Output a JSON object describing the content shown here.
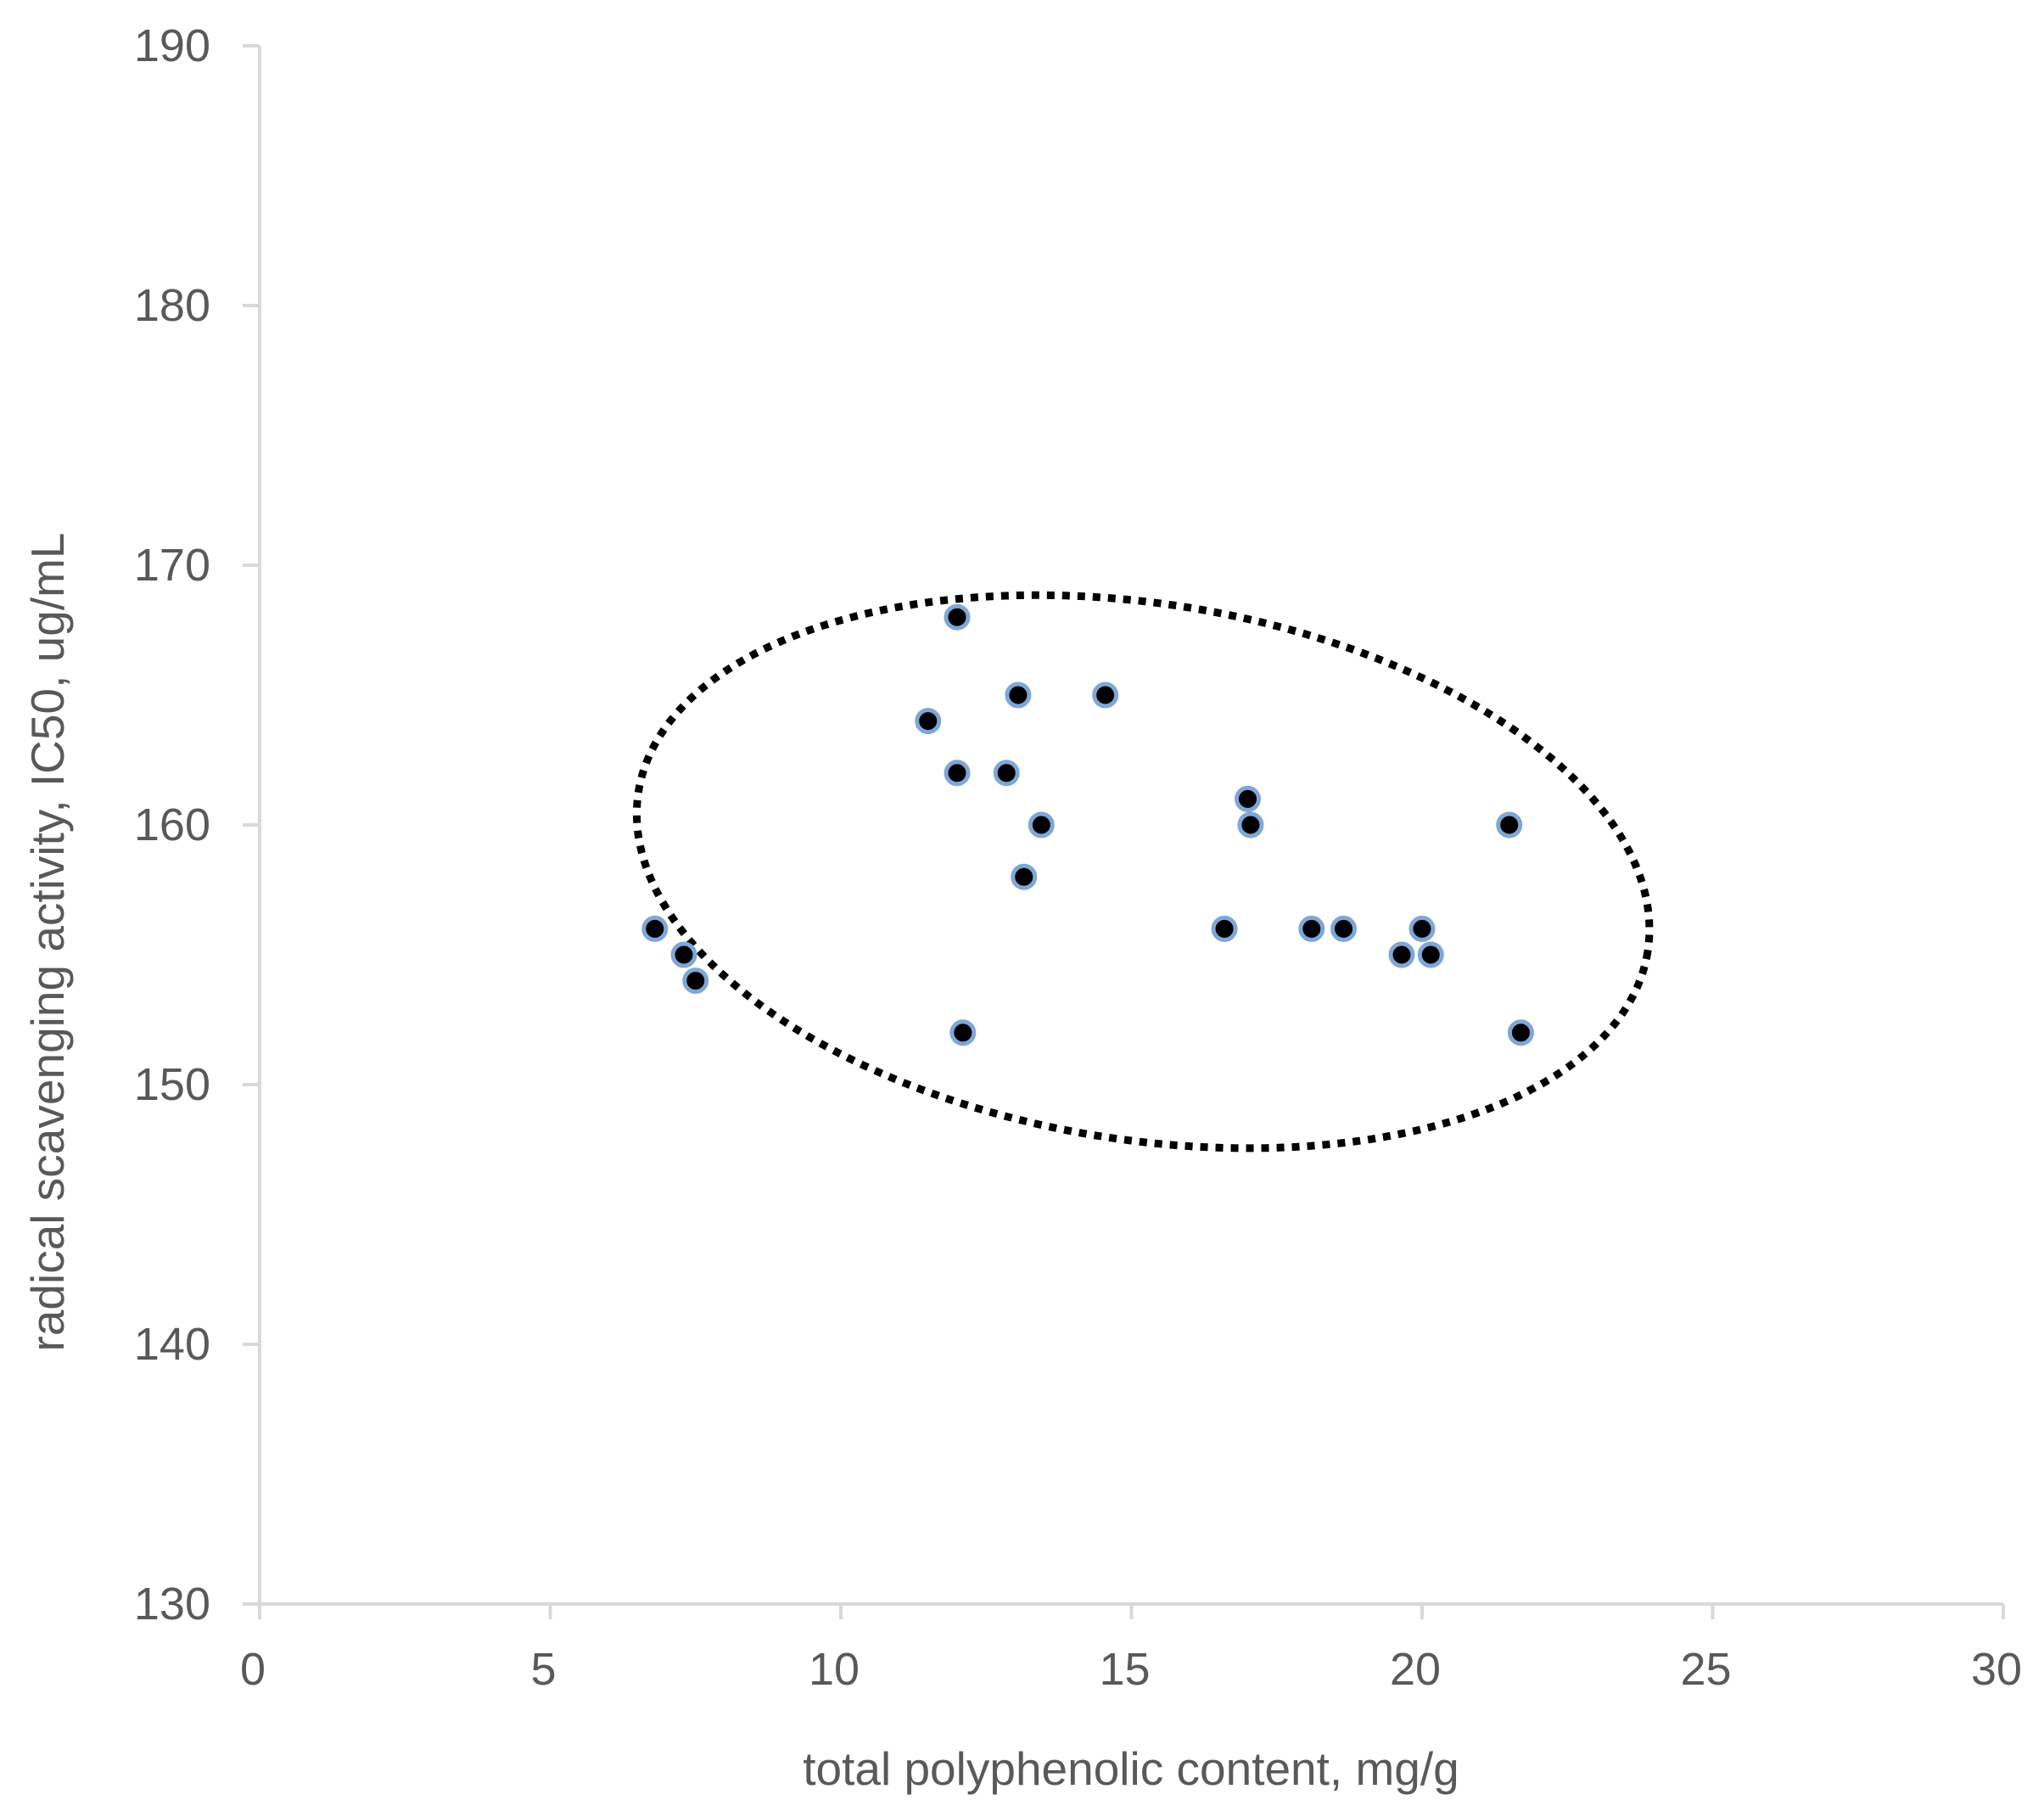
{
  "chart_data": {
    "type": "scatter",
    "title": "",
    "xlabel": "total polyphenolic content, mg/g",
    "ylabel": "radical scavenging activity, IC50, ug/mL",
    "xlim": [
      0,
      30
    ],
    "ylim": [
      130,
      190
    ],
    "x_ticks": [
      0,
      5,
      10,
      15,
      20,
      25,
      30
    ],
    "y_ticks": [
      130,
      140,
      150,
      160,
      170,
      180,
      190
    ],
    "x_tick_labels": [
      "0",
      "5",
      "10",
      "15",
      "20",
      "25",
      "30"
    ],
    "y_tick_labels": [
      "130",
      "140",
      "150",
      "160",
      "170",
      "180",
      "190"
    ],
    "grid": false,
    "legend": "none",
    "colors": {
      "marker_fill": "#000000",
      "marker_edge": "#7FA7D6",
      "axis": "#D9D9D9",
      "text": "#595959",
      "ellipse": "#000000"
    },
    "series": [
      {
        "points": [
          {
            "x": 6.8,
            "y": 156
          },
          {
            "x": 7.3,
            "y": 155
          },
          {
            "x": 7.5,
            "y": 154
          },
          {
            "x": 11.5,
            "y": 164
          },
          {
            "x": 12.0,
            "y": 168
          },
          {
            "x": 12.0,
            "y": 162
          },
          {
            "x": 12.1,
            "y": 152
          },
          {
            "x": 12.85,
            "y": 162
          },
          {
            "x": 13.05,
            "y": 165
          },
          {
            "x": 13.15,
            "y": 158
          },
          {
            "x": 13.45,
            "y": 160
          },
          {
            "x": 14.55,
            "y": 165
          },
          {
            "x": 16.6,
            "y": 156
          },
          {
            "x": 17.0,
            "y": 161
          },
          {
            "x": 17.05,
            "y": 160
          },
          {
            "x": 18.1,
            "y": 156
          },
          {
            "x": 18.65,
            "y": 156
          },
          {
            "x": 19.65,
            "y": 155
          },
          {
            "x": 20.0,
            "y": 156
          },
          {
            "x": 20.15,
            "y": 155
          },
          {
            "x": 21.5,
            "y": 160
          },
          {
            "x": 21.7,
            "y": 152
          }
        ]
      }
    ],
    "annotations": [
      {
        "type": "ellipse",
        "style": "dotted",
        "center": {
          "x": 15.2,
          "y": 158.2
        },
        "semi_axis_x": 8.79,
        "semi_axis_y": 10.32,
        "rotation_deg": 9.0
      }
    ]
  }
}
